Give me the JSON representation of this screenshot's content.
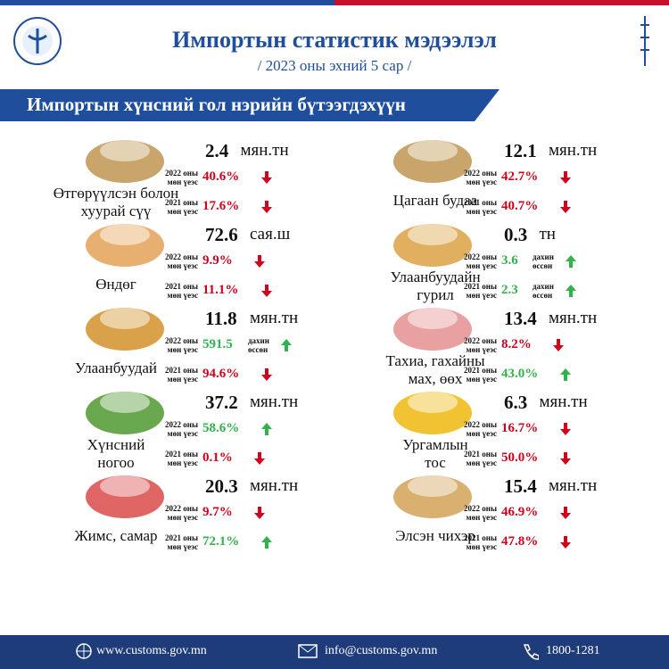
{
  "header": {
    "title": "Импортын статистик мэдээлэл",
    "subtitle": "/ 2023 оны эхний 5 сар /",
    "banner": "Импортын хүнсний гол нэрийн бүтээгдэхүүн"
  },
  "items": [
    {
      "name": [
        "Өтгөрүүлсэн болон",
        "хуурай сүү"
      ],
      "amount": "2.4",
      "unit": "мян.тн",
      "comparisons": [
        {
          "label": [
            "2022 оны",
            "мөн үеэс"
          ],
          "value": "40.6%",
          "direction": "down"
        },
        {
          "label": [
            "2021 оны",
            "мөн үеэс"
          ],
          "value": "17.6%",
          "direction": "down"
        }
      ]
    },
    {
      "name": [
        "Өндөг"
      ],
      "amount": "72.6",
      "unit": "сая.ш",
      "comparisons": [
        {
          "label": [
            "2022 оны",
            "мөн үеэс"
          ],
          "value": "9.9%",
          "direction": "down"
        },
        {
          "label": [
            "2021 оны",
            "мөн үеэс"
          ],
          "value": "11.1%",
          "direction": "down"
        }
      ]
    },
    {
      "name": [
        "Улаанбуудай"
      ],
      "amount": "11.8",
      "unit": "мян.тн",
      "comparisons": [
        {
          "label": [
            "2022 оны",
            "мөн үеэс"
          ],
          "value": "591.5",
          "note": [
            "дахин",
            "өссөн"
          ],
          "direction": "up"
        },
        {
          "label": [
            "2021 оны",
            "мөн үеэс"
          ],
          "value": "94.6%",
          "direction": "down"
        }
      ]
    },
    {
      "name": [
        "Хүнсний",
        "ногоо"
      ],
      "amount": "37.2",
      "unit": "мян.тн",
      "comparisons": [
        {
          "label": [
            "2022 оны",
            "мөн үеэс"
          ],
          "value": "58.6%",
          "direction": "up"
        },
        {
          "label": [
            "2021 оны",
            "мөн үеэс"
          ],
          "value": "0.1%",
          "direction": "down"
        }
      ]
    },
    {
      "name": [
        "Жимс, самар"
      ],
      "amount": "20.3",
      "unit": "мян.тн",
      "comparisons": [
        {
          "label": [
            "2022 оны",
            "мөн үеэс"
          ],
          "value": "9.7%",
          "direction": "down"
        },
        {
          "label": [
            "2021 оны",
            "мөн үеэс"
          ],
          "value": "72.1%",
          "direction": "up"
        }
      ]
    },
    {
      "name": [
        "Цагаан будаа"
      ],
      "amount": "12.1",
      "unit": "мян.тн",
      "comparisons": [
        {
          "label": [
            "2022 оны",
            "мөн үеэс"
          ],
          "value": "42.7%",
          "direction": "down"
        },
        {
          "label": [
            "2021 оны",
            "мөн үеэс"
          ],
          "value": "40.7%",
          "direction": "down"
        }
      ]
    },
    {
      "name": [
        "Улаанбуудайн",
        "гурил"
      ],
      "amount": "0.3",
      "unit": "тн",
      "comparisons": [
        {
          "label": [
            "2022 оны",
            "мөн үеэс"
          ],
          "value": "3.6",
          "note": [
            "дахин",
            "өссөн"
          ],
          "direction": "up"
        },
        {
          "label": [
            "2021 оны",
            "мөн үеэс"
          ],
          "value": "2.3",
          "note": [
            "дахин",
            "өссөн"
          ],
          "direction": "up"
        }
      ]
    },
    {
      "name": [
        "Тахиа, гахайны",
        "мах, өөх"
      ],
      "amount": "13.4",
      "unit": "мян.тн",
      "comparisons": [
        {
          "label": [
            "2022 оны",
            "мөн үеэс"
          ],
          "value": "8.2%",
          "direction": "down"
        },
        {
          "label": [
            "2021 оны",
            "мөн үеэс"
          ],
          "value": "43.0%",
          "direction": "up"
        }
      ]
    },
    {
      "name": [
        "Ургамлын",
        "тос"
      ],
      "amount": "6.3",
      "unit": "мян.тн",
      "comparisons": [
        {
          "label": [
            "2022 оны",
            "мөн үеэс"
          ],
          "value": "16.7%",
          "direction": "down"
        },
        {
          "label": [
            "2021 оны",
            "мөн үеэс"
          ],
          "value": "50.0%",
          "direction": "down"
        }
      ]
    },
    {
      "name": [
        "Элсэн чихэр"
      ],
      "amount": "15.4",
      "unit": "мян.тн",
      "comparisons": [
        {
          "label": [
            "2022 оны",
            "мөн үеэс"
          ],
          "value": "46.9%",
          "direction": "down"
        },
        {
          "label": [
            "2021 оны",
            "мөн үеэс"
          ],
          "value": "47.8%",
          "direction": "down"
        }
      ]
    }
  ],
  "footer": {
    "website": "www.customs.gov.mn",
    "email": "info@customs.gov.mn",
    "phone": "1800-1281"
  }
}
